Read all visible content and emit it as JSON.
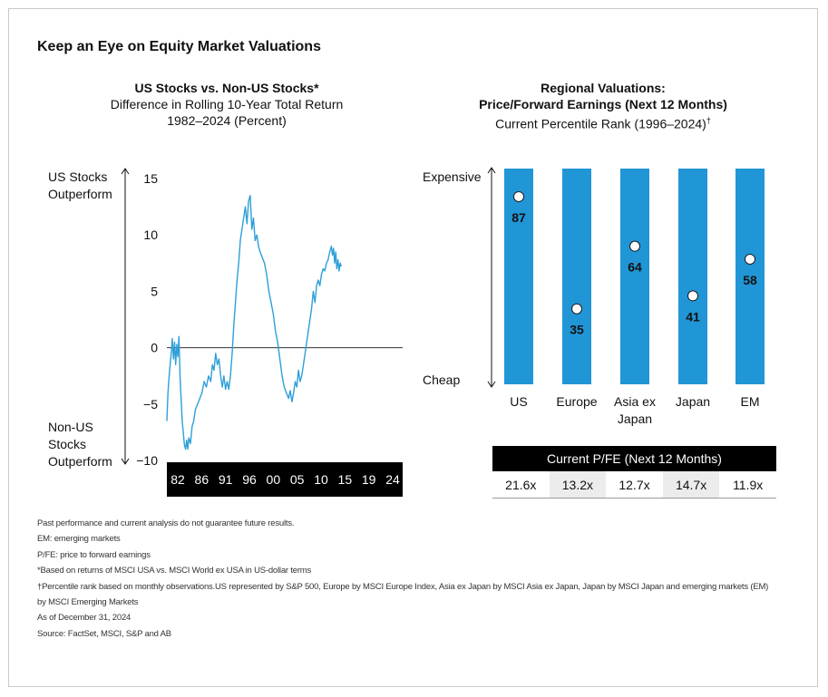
{
  "main_title": "Keep an Eye on Equity Market Valuations",
  "left_chart": {
    "title": "US Stocks vs. Non-US Stocks*",
    "subtitle1": "Difference in Rolling 10-Year Total Return",
    "subtitle2": "1982–2024 (Percent)",
    "top_label_1": "US Stocks",
    "top_label_2": "Outperform",
    "bottom_label_1": "Non-US",
    "bottom_label_2": "Stocks",
    "bottom_label_3": "Outperform"
  },
  "right_chart": {
    "title1": "Regional Valuations:",
    "title2": "Price/Forward Earnings (Next 12 Months)",
    "subtitle": "Current Percentile Rank (1996–2024)",
    "subtitle_mark": "†",
    "top_label": "Expensive",
    "bottom_label": "Cheap"
  },
  "pfe_table": {
    "header": "Current P/FE (Next 12 Months)",
    "values": [
      "21.6x",
      "13.2x",
      "12.7x",
      "14.7x",
      "11.9x"
    ]
  },
  "chart_data": [
    {
      "type": "line",
      "title": "US Stocks vs. Non-US Stocks*",
      "ylim": [
        -10,
        15
      ],
      "yticks": [
        "15",
        "10",
        "5",
        "0",
        "−5",
        "−10"
      ],
      "yticks_values": [
        15,
        10,
        5,
        0,
        -5,
        -10
      ],
      "xticks": [
        "82",
        "86",
        "91",
        "96",
        "00",
        "05",
        "10",
        "15",
        "19",
        "24"
      ],
      "xlim": [
        1982,
        2025
      ],
      "reference_line": 0,
      "line_color": "#2e9fd8",
      "series": [
        {
          "points": [
            [
              1982.0,
              -6.5
            ],
            [
              1982.2,
              -4.0
            ],
            [
              1982.5,
              -2.0
            ],
            [
              1982.8,
              -0.5
            ],
            [
              1983.0,
              0.8
            ],
            [
              1983.2,
              -1.0
            ],
            [
              1983.4,
              0.5
            ],
            [
              1983.6,
              -1.5
            ],
            [
              1983.8,
              0.3
            ],
            [
              1984.0,
              -0.8
            ],
            [
              1984.2,
              1.0
            ],
            [
              1984.4,
              -2.5
            ],
            [
              1984.6,
              -4.5
            ],
            [
              1984.8,
              -6.5
            ],
            [
              1985.0,
              -7.5
            ],
            [
              1985.2,
              -8.6
            ],
            [
              1985.4,
              -9.0
            ],
            [
              1985.6,
              -8.2
            ],
            [
              1985.8,
              -9.0
            ],
            [
              1986.0,
              -8.0
            ],
            [
              1986.3,
              -8.5
            ],
            [
              1986.6,
              -7.0
            ],
            [
              1986.9,
              -6.5
            ],
            [
              1987.2,
              -5.5
            ],
            [
              1987.6,
              -5.0
            ],
            [
              1988.0,
              -4.5
            ],
            [
              1988.4,
              -4.0
            ],
            [
              1988.8,
              -3.0
            ],
            [
              1989.2,
              -3.5
            ],
            [
              1989.6,
              -2.5
            ],
            [
              1990.0,
              -3.0
            ],
            [
              1990.3,
              -1.5
            ],
            [
              1990.6,
              -2.0
            ],
            [
              1990.9,
              -0.5
            ],
            [
              1991.2,
              -1.5
            ],
            [
              1991.5,
              -1.0
            ],
            [
              1991.8,
              -2.5
            ],
            [
              1992.1,
              -3.5
            ],
            [
              1992.4,
              -2.5
            ],
            [
              1992.7,
              -3.7
            ],
            [
              1993.0,
              -3.0
            ],
            [
              1993.3,
              -3.7
            ],
            [
              1993.6,
              -2.5
            ],
            [
              1993.9,
              -0.5
            ],
            [
              1994.2,
              2.0
            ],
            [
              1994.5,
              4.0
            ],
            [
              1994.8,
              6.0
            ],
            [
              1995.1,
              7.5
            ],
            [
              1995.4,
              9.5
            ],
            [
              1995.7,
              10.5
            ],
            [
              1996.0,
              11.5
            ],
            [
              1996.3,
              12.5
            ],
            [
              1996.6,
              11.0
            ],
            [
              1996.9,
              13.0
            ],
            [
              1997.2,
              13.5
            ],
            [
              1997.5,
              10.5
            ],
            [
              1997.8,
              11.5
            ],
            [
              1998.1,
              9.5
            ],
            [
              1998.4,
              10.0
            ],
            [
              1998.7,
              9.0
            ],
            [
              1999.0,
              8.5
            ],
            [
              1999.4,
              8.0
            ],
            [
              1999.8,
              7.5
            ],
            [
              2000.2,
              6.5
            ],
            [
              2000.6,
              5.0
            ],
            [
              2001.0,
              4.0
            ],
            [
              2001.4,
              3.0
            ],
            [
              2001.8,
              1.5
            ],
            [
              2002.2,
              0.5
            ],
            [
              2002.6,
              -1.0
            ],
            [
              2003.0,
              -2.5
            ],
            [
              2003.4,
              -3.5
            ],
            [
              2003.8,
              -4.0
            ],
            [
              2004.2,
              -4.5
            ],
            [
              2004.5,
              -3.8
            ],
            [
              2004.8,
              -4.8
            ],
            [
              2005.1,
              -4.0
            ],
            [
              2005.4,
              -3.0
            ],
            [
              2005.7,
              -3.5
            ],
            [
              2006.0,
              -2.0
            ],
            [
              2006.3,
              -3.0
            ],
            [
              2006.6,
              -2.5
            ],
            [
              2006.9,
              -1.5
            ],
            [
              2007.2,
              -0.5
            ],
            [
              2007.5,
              0.5
            ],
            [
              2007.8,
              1.5
            ],
            [
              2008.1,
              2.5
            ],
            [
              2008.4,
              3.5
            ],
            [
              2008.7,
              5.0
            ],
            [
              2009.0,
              4.0
            ],
            [
              2009.3,
              5.5
            ],
            [
              2009.6,
              6.0
            ],
            [
              2009.9,
              5.5
            ],
            [
              2010.2,
              6.5
            ],
            [
              2010.5,
              7.0
            ],
            [
              2010.8,
              6.8
            ],
            [
              2011.1,
              7.5
            ],
            [
              2011.4,
              7.8
            ],
            [
              2011.7,
              8.5
            ],
            [
              2012.0,
              9.0
            ],
            [
              2012.2,
              8.2
            ],
            [
              2012.4,
              8.8
            ],
            [
              2012.6,
              7.5
            ],
            [
              2012.8,
              8.5
            ],
            [
              2013.0,
              7.0
            ],
            [
              2013.2,
              7.8
            ],
            [
              2013.4,
              6.8
            ],
            [
              2013.6,
              7.5
            ],
            [
              2013.8,
              7.2
            ]
          ]
        }
      ]
    },
    {
      "type": "bar",
      "title": "Regional Valuations: Price/Forward Earnings (Next 12 Months)",
      "categories": [
        "US",
        "Europe",
        "Asia ex Japan",
        "Japan",
        "EM"
      ],
      "category_lines": [
        [
          "US"
        ],
        [
          "Europe"
        ],
        [
          "Asia ex",
          "Japan"
        ],
        [
          "Japan"
        ],
        [
          "EM"
        ]
      ],
      "values": [
        87,
        35,
        64,
        41,
        58
      ],
      "value_labels": [
        "87",
        "35",
        "64",
        "41",
        "58"
      ],
      "ylim": [
        0,
        100
      ],
      "bar_color": "#2196d6"
    }
  ],
  "notes": [
    "Past performance and current analysis do not guarantee future results.",
    "EM: emerging markets",
    "P/FE: price to forward earnings",
    "*Based on returns of MSCI USA vs. MSCI World ex USA in US-dollar terms",
    "†Percentile rank based on monthly observations.US represented by S&P 500, Europe by MSCI Europe Index, Asia ex Japan by MSCI Asia ex Japan, Japan by MSCI Japan and emerging markets (EM)",
    "by MSCI Emerging Markets",
    "As of December 31, 2024",
    "Source: FactSet, MSCI, S&P and AB"
  ]
}
